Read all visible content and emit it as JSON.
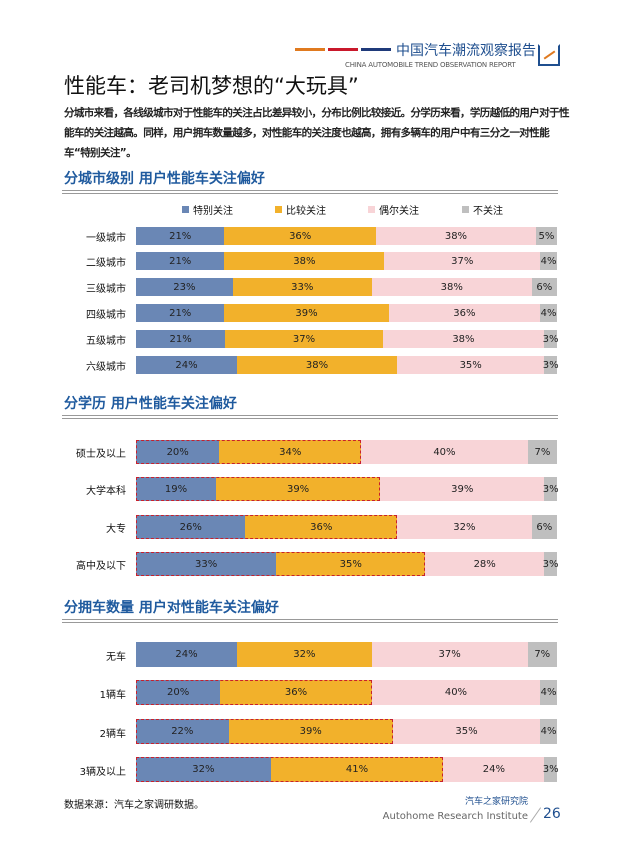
{
  "header": {
    "brand": "中国汽车潮流观察报告",
    "brand_en": "CHINA AUTOMOBILE TREND OBSERVATION REPORT",
    "line_colors": [
      "#e07a1f",
      "#c9182b",
      "#1f3a7a"
    ]
  },
  "title": "性能车：老司机梦想的“大玩具”",
  "intro": "分城市来看，各线级城市对于性能车的关注占比差异较小，分布比例比较接近。分学历来看，学历越低的用户对于性能车的关注越高。同样，用户拥车数量越多，对性能车的关注度也越高，拥有多辆车的用户中有三分之一对性能车“特别关注”。",
  "colors": [
    "#6a87b5",
    "#f2b12b",
    "#f8d4d7",
    "#bfbfbf"
  ],
  "legend": [
    "特别关注",
    "比较关注",
    "偶尔关注",
    "不关注"
  ],
  "chart_data": [
    {
      "type": "bar",
      "stacked": true,
      "orientation": "horizontal",
      "title": "分城市级别 用户性能车关注偏好",
      "series_names": [
        "特别关注",
        "比较关注",
        "偶尔关注",
        "不关注"
      ],
      "categories": [
        "一级城市",
        "二级城市",
        "三级城市",
        "四级城市",
        "五级城市",
        "六级城市"
      ],
      "values": [
        [
          21,
          36,
          38,
          5
        ],
        [
          21,
          38,
          37,
          4
        ],
        [
          23,
          33,
          38,
          6
        ],
        [
          21,
          39,
          36,
          4
        ],
        [
          21,
          37,
          38,
          3
        ],
        [
          24,
          38,
          35,
          3
        ]
      ],
      "highlighted": []
    },
    {
      "type": "bar",
      "stacked": true,
      "orientation": "horizontal",
      "title": "分学历 用户性能车关注偏好",
      "categories": [
        "硕士及以上",
        "大学本科",
        "大专",
        "高中及以下"
      ],
      "values": [
        [
          20,
          34,
          40,
          7
        ],
        [
          19,
          39,
          39,
          3
        ],
        [
          26,
          36,
          32,
          6
        ],
        [
          33,
          35,
          28,
          3
        ]
      ],
      "highlighted": [
        0,
        1,
        2,
        3
      ]
    },
    {
      "type": "bar",
      "stacked": true,
      "orientation": "horizontal",
      "title": "分拥车数量 用户对性能车关注偏好",
      "categories": [
        "无车",
        "1辆车",
        "2辆车",
        "3辆及以上"
      ],
      "values": [
        [
          24,
          32,
          37,
          7
        ],
        [
          20,
          36,
          40,
          4
        ],
        [
          22,
          39,
          35,
          4
        ],
        [
          32,
          41,
          24,
          3
        ]
      ],
      "highlighted": [
        1,
        2,
        3
      ]
    }
  ],
  "source": "数据来源：汽车之家调研数据。",
  "footer": {
    "org_cn": "汽车之家研究院",
    "org_en": "Autohome Research Institute",
    "page": "26"
  }
}
